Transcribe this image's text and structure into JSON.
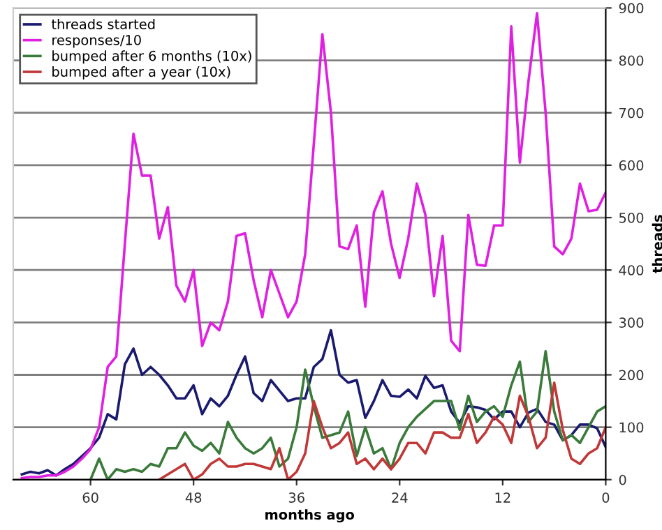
{
  "chart_data": {
    "type": "line",
    "xlabel": "months ago",
    "ylabel": "threads",
    "x": [
      68,
      67,
      66,
      65,
      64,
      63,
      62,
      61,
      60,
      59,
      58,
      57,
      56,
      55,
      54,
      53,
      52,
      51,
      50,
      49,
      48,
      47,
      46,
      45,
      44,
      43,
      42,
      41,
      40,
      39,
      38,
      37,
      36,
      35,
      34,
      33,
      32,
      31,
      30,
      29,
      28,
      27,
      26,
      25,
      24,
      23,
      22,
      21,
      20,
      19,
      18,
      17,
      16,
      15,
      14,
      13,
      12,
      11,
      10,
      9,
      8,
      7,
      6,
      5,
      4,
      3,
      2,
      1,
      0
    ],
    "series": [
      {
        "name": "threads started",
        "color": "#1a1a6e",
        "values": [
          10,
          15,
          12,
          18,
          8,
          20,
          30,
          45,
          60,
          80,
          125,
          115,
          220,
          250,
          200,
          215,
          200,
          180,
          155,
          155,
          180,
          125,
          155,
          140,
          160,
          200,
          235,
          165,
          150,
          190,
          170,
          150,
          155,
          155,
          215,
          230,
          285,
          200,
          185,
          190,
          118,
          150,
          190,
          160,
          158,
          172,
          155,
          198,
          175,
          180,
          130,
          108,
          140,
          138,
          133,
          115,
          130,
          130,
          100,
          128,
          135,
          110,
          105,
          75,
          85,
          105,
          105,
          98,
          62
        ]
      },
      {
        "name": "responses/10",
        "color": "#e020e0",
        "values": [
          3,
          5,
          5,
          8,
          8,
          15,
          25,
          40,
          58,
          100,
          215,
          235,
          450,
          660,
          580,
          580,
          460,
          520,
          370,
          340,
          400,
          255,
          300,
          285,
          340,
          465,
          470,
          380,
          310,
          400,
          355,
          310,
          340,
          430,
          640,
          850,
          700,
          445,
          440,
          485,
          330,
          510,
          550,
          450,
          385,
          460,
          565,
          505,
          350,
          465,
          265,
          245,
          505,
          410,
          408,
          485,
          485,
          865,
          605,
          760,
          890,
          700,
          445,
          430,
          460,
          565,
          512,
          515,
          548
        ]
      },
      {
        "name": "bumped after 6 months (10x)",
        "color": "#3a7a3a",
        "values": [
          null,
          null,
          null,
          null,
          null,
          null,
          null,
          null,
          0,
          40,
          0,
          20,
          15,
          20,
          15,
          30,
          25,
          60,
          60,
          90,
          65,
          55,
          70,
          50,
          110,
          80,
          60,
          50,
          60,
          80,
          25,
          40,
          100,
          210,
          140,
          80,
          85,
          90,
          130,
          45,
          100,
          50,
          60,
          20,
          70,
          100,
          120,
          135,
          150,
          150,
          150,
          95,
          160,
          110,
          130,
          140,
          120,
          180,
          225,
          110,
          130,
          245,
          130,
          75,
          85,
          70,
          100,
          130,
          140
        ]
      },
      {
        "name": "bumped after a year (10x)",
        "color": "#c03838",
        "values": [
          null,
          null,
          null,
          null,
          null,
          null,
          null,
          null,
          null,
          null,
          null,
          null,
          null,
          null,
          null,
          null,
          0,
          10,
          20,
          30,
          0,
          10,
          30,
          40,
          25,
          25,
          30,
          30,
          25,
          20,
          60,
          0,
          15,
          50,
          150,
          100,
          60,
          70,
          90,
          30,
          40,
          20,
          40,
          20,
          40,
          70,
          70,
          50,
          90,
          90,
          80,
          80,
          125,
          70,
          90,
          120,
          105,
          70,
          160,
          120,
          60,
          80,
          185,
          95,
          40,
          30,
          50,
          60,
          100
        ]
      }
    ],
    "xlim": [
      69,
      0
    ],
    "xticks": [
      60,
      48,
      36,
      24,
      12,
      0
    ],
    "ylim": [
      0,
      900
    ],
    "yticks": [
      0,
      100,
      200,
      300,
      400,
      500,
      600,
      700,
      800,
      900
    ],
    "grid": "y",
    "legend": "top left"
  }
}
